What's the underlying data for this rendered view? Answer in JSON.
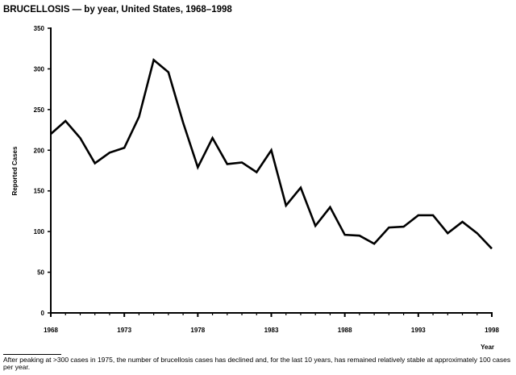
{
  "chart_data": {
    "type": "line",
    "title": "BRUCELLOSIS — by year, United States, 1968–1998",
    "xlabel": "Year",
    "ylabel": "Reported Cases",
    "xlim": [
      1968,
      1998
    ],
    "ylim": [
      0,
      350
    ],
    "x_ticks": [
      "1968",
      "1973",
      "1978",
      "1983",
      "1988",
      "1993",
      "1998"
    ],
    "y_ticks": [
      "0",
      "50",
      "100",
      "150",
      "200",
      "250",
      "300",
      "350"
    ],
    "grid": false,
    "series": [
      {
        "name": "Reported Cases",
        "color": "#000000",
        "x": [
          1968,
          1969,
          1970,
          1971,
          1972,
          1973,
          1974,
          1975,
          1976,
          1977,
          1978,
          1979,
          1980,
          1981,
          1982,
          1983,
          1984,
          1985,
          1986,
          1987,
          1988,
          1989,
          1990,
          1991,
          1992,
          1993,
          1994,
          1995,
          1996,
          1997,
          1998
        ],
        "values": [
          220,
          236,
          215,
          184,
          197,
          203,
          241,
          311,
          296,
          234,
          179,
          215,
          183,
          185,
          173,
          200,
          132,
          154,
          107,
          130,
          96,
          95,
          85,
          105,
          106,
          120,
          120,
          98,
          112,
          98,
          79
        ]
      }
    ]
  },
  "footnote": "After peaking at >300 cases in 1975, the number of brucellosis cases has declined and, for the last 10 years, has remained relatively stable at approximately 100 cases per year."
}
